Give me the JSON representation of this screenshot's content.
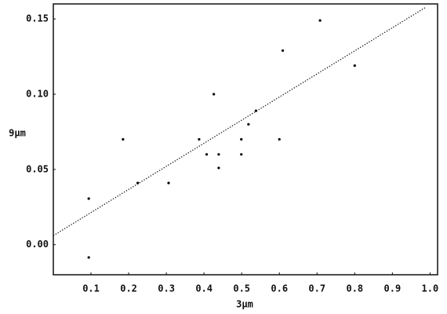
{
  "chart_data": {
    "type": "scatter",
    "x_label": "3µm",
    "y_label": "9µm",
    "x": [
      0.094,
      0.094,
      0.185,
      0.224,
      0.306,
      0.387,
      0.407,
      0.426,
      0.439,
      0.439,
      0.499,
      0.499,
      0.518,
      0.538,
      0.6,
      0.609,
      0.708,
      0.8
    ],
    "values": [
      -0.0085,
      0.0306,
      0.07,
      0.041,
      0.041,
      0.07,
      0.06,
      0.1,
      0.06,
      0.051,
      0.07,
      0.06,
      0.08,
      0.089,
      0.07,
      0.129,
      0.149,
      0.119
    ],
    "color": "#000000",
    "trend_line": {
      "x": [
        0,
        0.99
      ],
      "y": [
        0.006,
        0.158
      ]
    },
    "xlim": [
      0,
      1.02
    ],
    "ylim": [
      -0.02,
      0.16
    ],
    "xticks": [
      0.1,
      0.2,
      0.3,
      0.4,
      0.5,
      0.6,
      0.7,
      0.8,
      0.9,
      {
        "value": 1,
        "label": "1.0"
      }
    ],
    "yticks": [
      {
        "value": 0,
        "label": "0.00"
      },
      0.05,
      {
        "value": 0.1,
        "label": "0.10"
      },
      0.15
    ],
    "grid": false
  }
}
